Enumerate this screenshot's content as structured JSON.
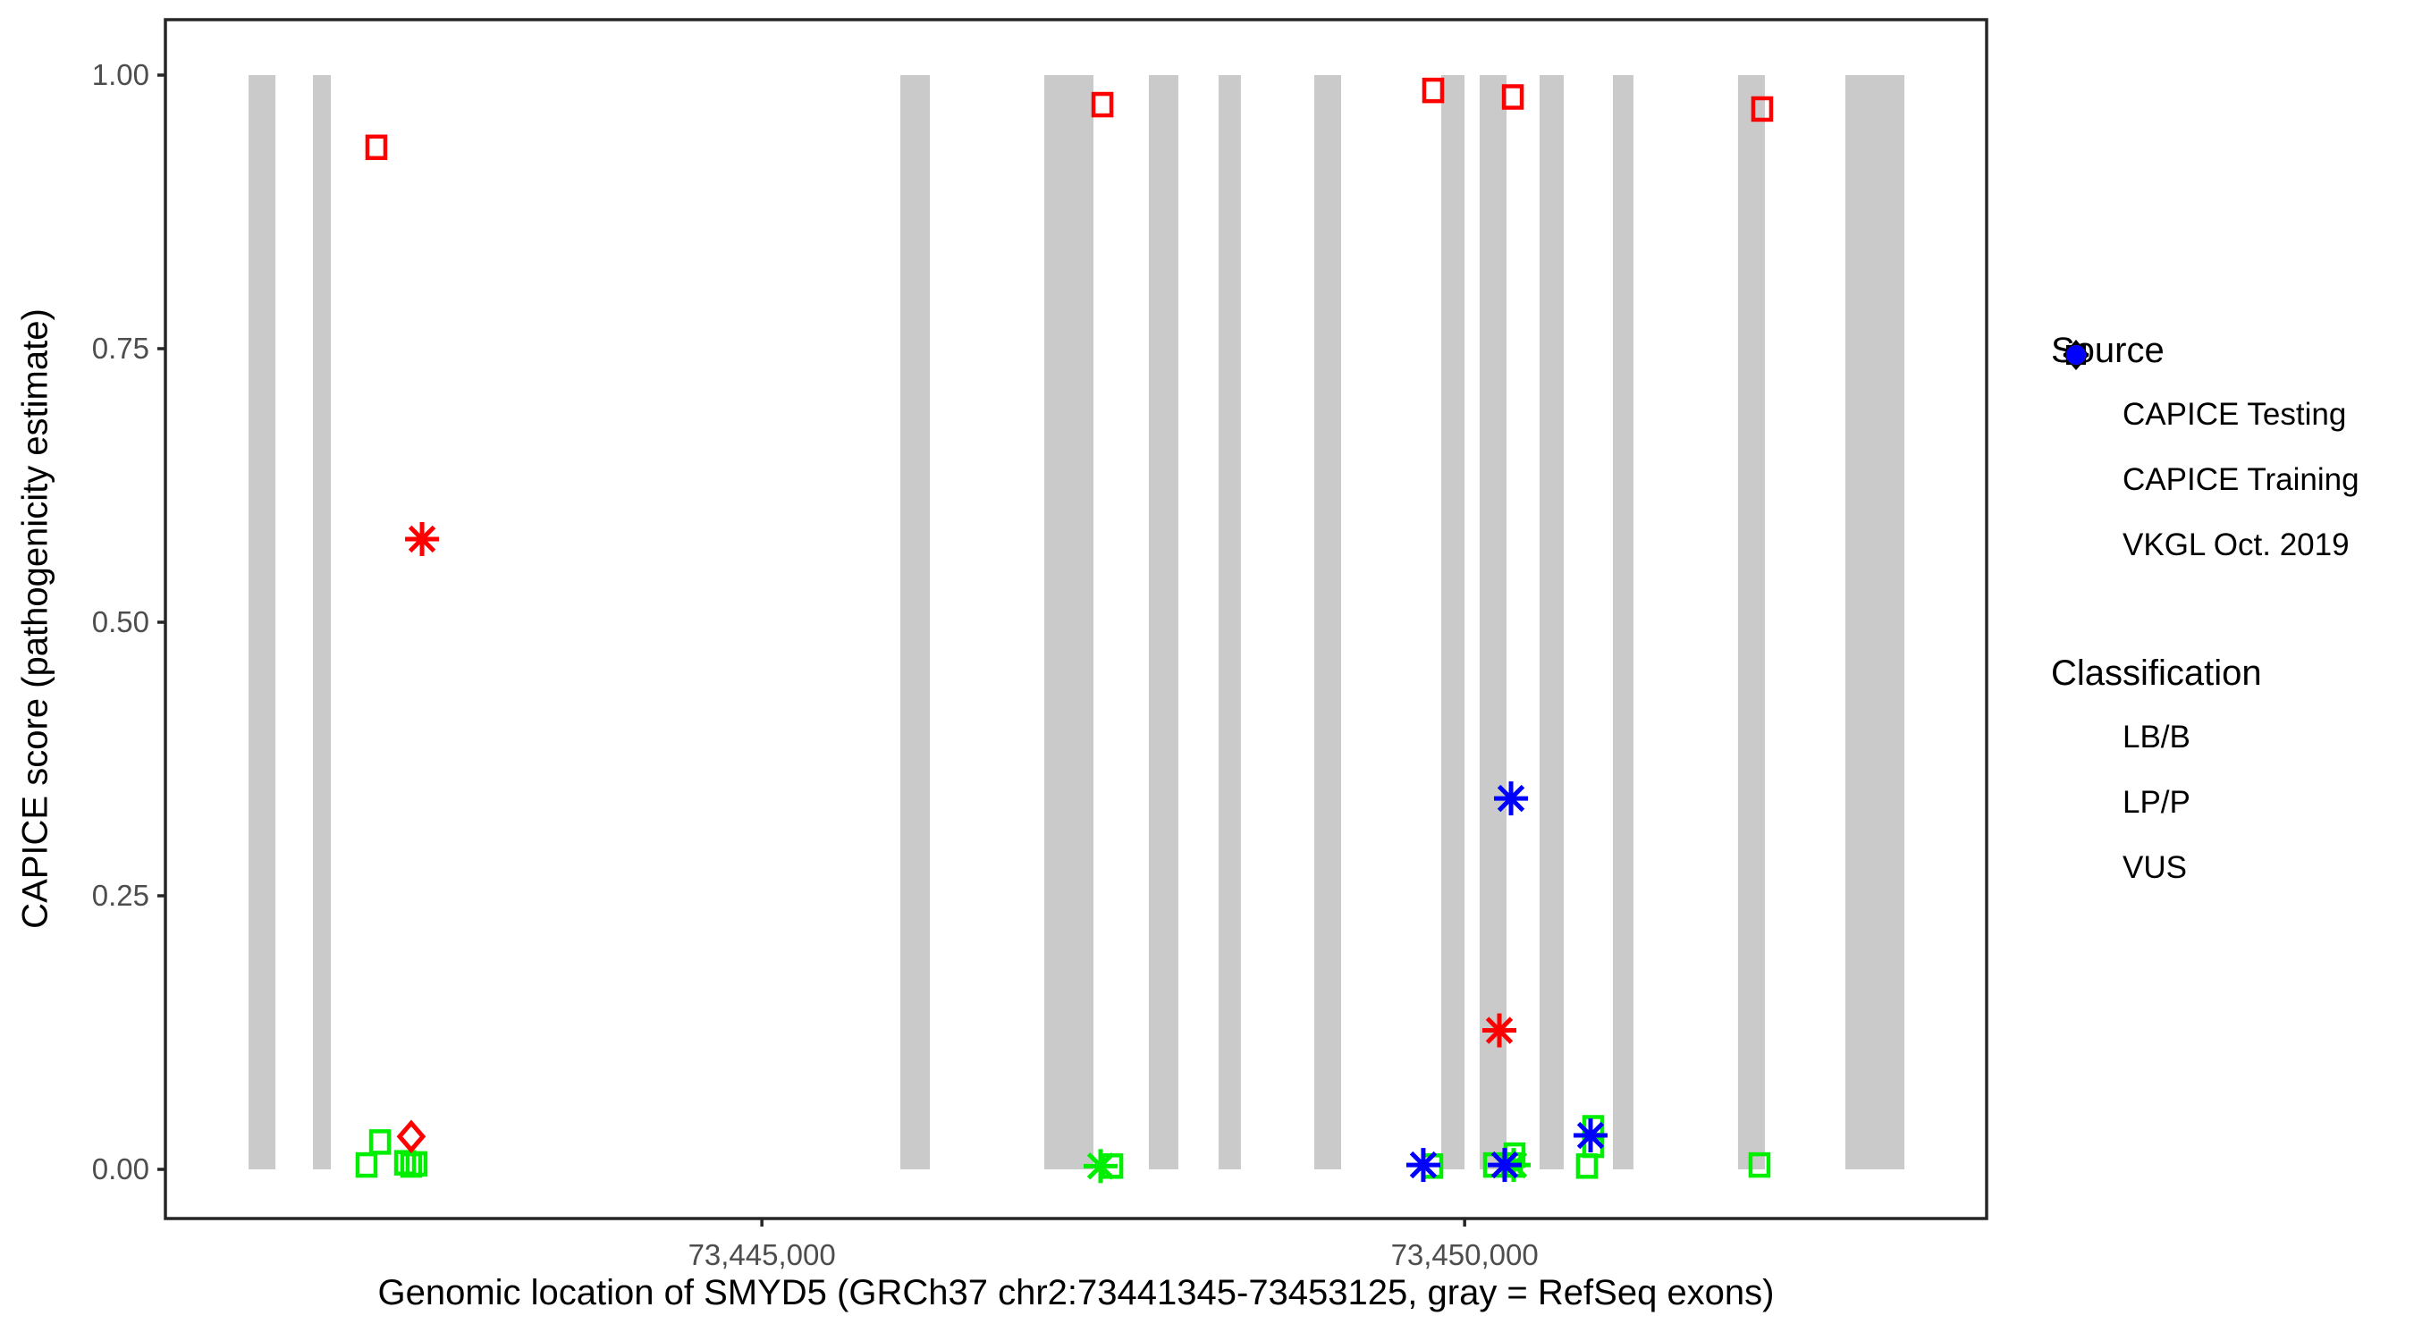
{
  "colors": {
    "LB/B": "#00EE00",
    "LP/P": "#FF0000",
    "VUS": "#0000FF",
    "exon_gray": "#CACACA",
    "panel_border": "#262626",
    "tick_text": "#4D4D4D"
  },
  "legend": {
    "source": {
      "title": "Source",
      "items": [
        {
          "label": "CAPICE Testing",
          "shape": "diamond",
          "icon_name": "diamond-icon"
        },
        {
          "label": "CAPICE Training",
          "shape": "square",
          "icon_name": "square-icon"
        },
        {
          "label": "VKGL Oct. 2019",
          "shape": "asterisk",
          "icon_name": "asterisk-icon"
        }
      ]
    },
    "classification": {
      "title": "Classification",
      "items": [
        {
          "label": "LB/B",
          "color": "#00EE00",
          "icon_name": "green-dot-icon"
        },
        {
          "label": "LP/P",
          "color": "#FF0000",
          "icon_name": "red-dot-icon"
        },
        {
          "label": "VUS",
          "color": "#0000FF",
          "icon_name": "blue-dot-icon"
        }
      ]
    }
  },
  "chart_data": {
    "type": "scatter",
    "title": "",
    "xlabel": "Genomic location of SMYD5 (GRCh37 chr2:73441345-73453125, gray = RefSeq exons)",
    "ylabel": "CAPICE score (pathogenicity estimate)",
    "x_domain": [
      73440756,
      73453714
    ],
    "y_domain": [
      0,
      1
    ],
    "x_ticks": [
      {
        "value": 73445000,
        "label": "73,445,000"
      },
      {
        "value": 73450000,
        "label": "73,450,000"
      }
    ],
    "y_ticks": [
      {
        "value": 1.0,
        "label": "1.00"
      },
      {
        "value": 0.75,
        "label": "0.75"
      },
      {
        "value": 0.5,
        "label": "0.50"
      },
      {
        "value": 0.25,
        "label": "0.25"
      },
      {
        "value": 0.0,
        "label": "0.00"
      }
    ],
    "grid": false,
    "legend_position": "right",
    "exons_note": "gray = RefSeq exons",
    "exons": [
      [
        73441348,
        73441539
      ],
      [
        73441806,
        73441933
      ],
      [
        73445985,
        73446195
      ],
      [
        73447009,
        73447359
      ],
      [
        73447753,
        73447963
      ],
      [
        73448249,
        73448408
      ],
      [
        73448930,
        73449121
      ],
      [
        73449833,
        73449999
      ],
      [
        73450107,
        73450298
      ],
      [
        73450533,
        73450705
      ],
      [
        73451055,
        73451201
      ],
      [
        73451945,
        73452136
      ],
      [
        73452709,
        73453129
      ]
    ],
    "points": [
      {
        "x": 73442187,
        "y": 0.004,
        "source": "CAPICE Training",
        "classification": "LB/B"
      },
      {
        "x": 73442283,
        "y": 0.025,
        "source": "CAPICE Training",
        "classification": "LB/B"
      },
      {
        "x": 73442461,
        "y": 0.006,
        "source": "CAPICE Training",
        "classification": "LB/B"
      },
      {
        "x": 73442505,
        "y": 0.004,
        "source": "CAPICE Training",
        "classification": "LB/B"
      },
      {
        "x": 73442543,
        "y": 0.005,
        "source": "CAPICE Training",
        "classification": "LB/B"
      },
      {
        "x": 73447410,
        "y": 0.003,
        "source": "VKGL Oct. 2019",
        "classification": "LB/B"
      },
      {
        "x": 73447493,
        "y": 0.003,
        "source": "CAPICE Training",
        "classification": "LB/B"
      },
      {
        "x": 73449770,
        "y": 0.003,
        "source": "CAPICE Training",
        "classification": "LB/B"
      },
      {
        "x": 73450209,
        "y": 0.004,
        "source": "CAPICE Training",
        "classification": "LB/B"
      },
      {
        "x": 73450336,
        "y": 0.004,
        "source": "CAPICE Training",
        "classification": "LB/B"
      },
      {
        "x": 73450349,
        "y": 0.004,
        "source": "VKGL Oct. 2019",
        "classification": "LB/B"
      },
      {
        "x": 73450355,
        "y": 0.013,
        "source": "CAPICE Training",
        "classification": "LB/B"
      },
      {
        "x": 73450870,
        "y": 0.003,
        "source": "CAPICE Training",
        "classification": "LB/B"
      },
      {
        "x": 73450915,
        "y": 0.038,
        "source": "CAPICE Training",
        "classification": "LB/B"
      },
      {
        "x": 73450915,
        "y": 0.022,
        "source": "CAPICE Training",
        "classification": "LB/B"
      },
      {
        "x": 73452098,
        "y": 0.004,
        "source": "CAPICE Training",
        "classification": "LB/B"
      },
      {
        "x": 73442257,
        "y": 0.934,
        "source": "CAPICE Training",
        "classification": "LP/P"
      },
      {
        "x": 73447423,
        "y": 0.973,
        "source": "CAPICE Training",
        "classification": "LP/P"
      },
      {
        "x": 73449776,
        "y": 0.986,
        "source": "CAPICE Training",
        "classification": "LP/P"
      },
      {
        "x": 73450343,
        "y": 0.98,
        "source": "CAPICE Training",
        "classification": "LP/P"
      },
      {
        "x": 73452117,
        "y": 0.969,
        "source": "CAPICE Training",
        "classification": "LP/P"
      },
      {
        "x": 73442505,
        "y": 0.03,
        "source": "CAPICE Testing",
        "classification": "LP/P"
      },
      {
        "x": 73442582,
        "y": 0.576,
        "source": "VKGL Oct. 2019",
        "classification": "LP/P"
      },
      {
        "x": 73450247,
        "y": 0.127,
        "source": "VKGL Oct. 2019",
        "classification": "LP/P"
      },
      {
        "x": 73449706,
        "y": 0.004,
        "source": "VKGL Oct. 2019",
        "classification": "VUS"
      },
      {
        "x": 73450285,
        "y": 0.004,
        "source": "VKGL Oct. 2019",
        "classification": "VUS"
      },
      {
        "x": 73450330,
        "y": 0.339,
        "source": "VKGL Oct. 2019",
        "classification": "VUS"
      },
      {
        "x": 73450896,
        "y": 0.031,
        "source": "VKGL Oct. 2019",
        "classification": "VUS"
      }
    ]
  }
}
